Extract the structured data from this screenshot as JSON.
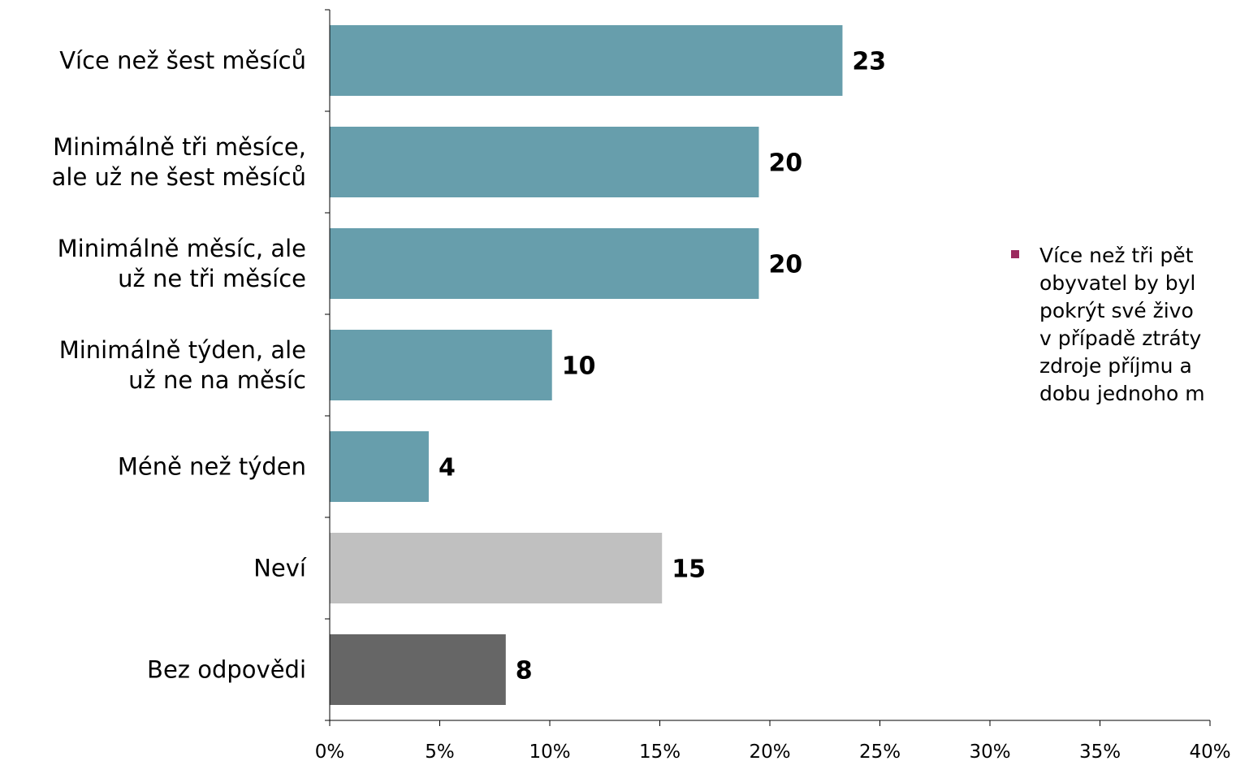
{
  "chart_data": {
    "type": "bar",
    "orientation": "horizontal",
    "categories": [
      "Více než šest měsíců",
      "Minimálně tři měsíce,\nale už ne šest měsíců",
      "Minimálně měsíc, ale\nuž ne tři měsíce",
      "Minimálně týden, ale\nuž ne na měsíc",
      "Méně než týden",
      "Neví",
      "Bez odpovědi"
    ],
    "values": [
      23.3,
      19.5,
      19.5,
      10.1,
      4.5,
      15.1,
      8.0
    ],
    "data_labels": [
      "23",
      "20",
      "20",
      "10",
      "4",
      "15",
      "8"
    ],
    "bar_colors": [
      "#679eac",
      "#679eac",
      "#679eac",
      "#679eac",
      "#679eac",
      "#c0c0c0",
      "#666666"
    ],
    "xlim": [
      0,
      40
    ],
    "x_ticks": [
      "0%",
      "5%",
      "10%",
      "15%",
      "20%",
      "25%",
      "30%",
      "35%",
      "40%"
    ],
    "title": "",
    "xlabel": "",
    "ylabel": "",
    "grid": false,
    "legend": false
  },
  "note": {
    "bullet_color": "#9b2a5e",
    "text": "Více než tři pět\nobyvatel by byl\npokrýt své živo\nv případě ztráty\nzdroje příjmu a\ndobu jednoho m"
  }
}
